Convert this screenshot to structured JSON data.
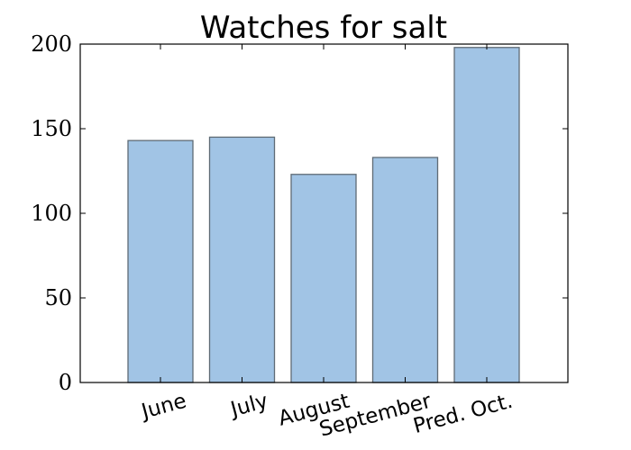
{
  "chart_data": {
    "type": "bar",
    "title": "Watches for salt",
    "xlabel": "",
    "ylabel": "",
    "categories": [
      "June",
      "July",
      "August",
      "September",
      "Pred. Oct."
    ],
    "values": [
      143,
      145,
      123,
      133,
      198
    ],
    "ylim": [
      0,
      200
    ],
    "yticks": [
      0,
      50,
      100,
      150,
      200
    ],
    "bar_color": "#a1c4e5",
    "bar_edge_color": "#5f6b75",
    "grid": false,
    "legend": "none"
  }
}
